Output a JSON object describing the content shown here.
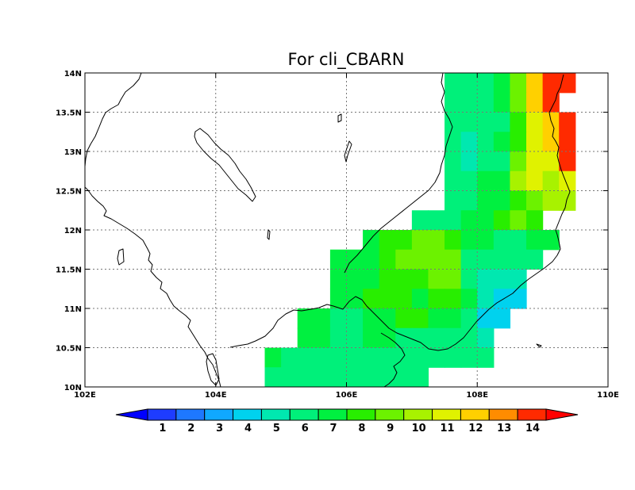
{
  "title": "For cli_CBARN",
  "map": {
    "region": "Southern Vietnam / Cambodia",
    "lon_range": [
      102,
      110
    ],
    "lat_range": [
      10,
      14
    ],
    "grid_lines": "dotted",
    "x_ticks": [
      {
        "value": 102,
        "label": "102E"
      },
      {
        "value": 104,
        "label": "104E"
      },
      {
        "value": 106,
        "label": "106E"
      },
      {
        "value": 108,
        "label": "108E"
      },
      {
        "value": 110,
        "label": "110E"
      }
    ],
    "y_ticks": [
      {
        "value": 10,
        "label": "10N"
      },
      {
        "value": 10.5,
        "label": "10.5N"
      },
      {
        "value": 11,
        "label": "11N"
      },
      {
        "value": 11.5,
        "label": "11.5N"
      },
      {
        "value": 12,
        "label": "12N"
      },
      {
        "value": 12.5,
        "label": "12.5N"
      },
      {
        "value": 13,
        "label": "13N"
      },
      {
        "value": 13.5,
        "label": "13.5N"
      },
      {
        "value": 14,
        "label": "14N"
      }
    ]
  },
  "colorbar": {
    "labels": [
      "1",
      "2",
      "3",
      "4",
      "5",
      "6",
      "7",
      "8",
      "9",
      "10",
      "11",
      "12",
      "13",
      "14"
    ],
    "colors": [
      "#1e3cff",
      "#1e78ff",
      "#10a8ff",
      "#00d2ee",
      "#00e8b0",
      "#00f07a",
      "#00f040",
      "#28ee00",
      "#6cf200",
      "#a8f200",
      "#e0f200",
      "#ffd000",
      "#ff8c00",
      "#ff2a00"
    ],
    "under_color": "#0000ff",
    "over_color": "#ff0000"
  },
  "chart_data": {
    "type": "heatmap",
    "title": "For cli_CBARN",
    "x_range": [
      102,
      110
    ],
    "y_range": [
      10,
      14
    ],
    "cell_size_deg": 0.25,
    "color_levels": [
      1,
      2,
      3,
      4,
      5,
      6,
      7,
      8,
      9,
      10,
      11,
      12,
      13,
      14
    ],
    "rows": [
      {
        "lat": 13.875,
        "lon_start": 107.5,
        "levels": [
          6,
          6,
          6,
          7,
          9,
          12,
          14,
          14
        ]
      },
      {
        "lat": 13.625,
        "lon_start": 107.5,
        "levels": [
          6,
          6,
          6,
          7,
          9,
          12,
          14
        ]
      },
      {
        "lat": 13.375,
        "lon_start": 107.5,
        "levels": [
          6,
          6,
          6,
          6,
          8,
          11,
          12,
          14
        ]
      },
      {
        "lat": 13.125,
        "lon_start": 107.5,
        "levels": [
          6,
          5,
          6,
          7,
          8,
          11,
          12,
          14
        ]
      },
      {
        "lat": 12.875,
        "lon_start": 107.5,
        "levels": [
          6,
          5,
          6,
          6,
          9,
          11,
          11,
          14
        ]
      },
      {
        "lat": 12.625,
        "lon_start": 107.5,
        "levels": [
          6,
          6,
          7,
          7,
          10,
          11,
          10,
          11
        ]
      },
      {
        "lat": 12.375,
        "lon_start": 107.5,
        "levels": [
          6,
          6,
          7,
          7,
          8,
          9,
          10,
          10
        ]
      },
      {
        "lat": 12.125,
        "lon_start": 107.0,
        "levels": [
          6,
          6,
          6,
          7,
          7,
          8,
          9,
          8
        ]
      },
      {
        "lat": 11.875,
        "lon_start": 106.25,
        "levels": [
          7,
          8,
          8,
          9,
          9,
          8,
          7,
          7,
          6,
          6,
          7,
          7
        ]
      },
      {
        "lat": 11.625,
        "lon_start": 105.75,
        "levels": [
          7,
          7,
          7,
          8,
          9,
          9,
          9,
          9,
          6,
          6,
          6,
          6,
          6
        ]
      },
      {
        "lat": 11.375,
        "lon_start": 105.75,
        "levels": [
          7,
          7,
          7,
          8,
          8,
          8,
          9,
          9,
          6,
          5,
          5,
          5
        ]
      },
      {
        "lat": 11.125,
        "lon_start": 105.75,
        "levels": [
          7,
          7,
          8,
          8,
          8,
          7,
          8,
          8,
          7,
          5,
          4,
          4
        ]
      },
      {
        "lat": 10.875,
        "lon_start": 105.25,
        "levels": [
          7,
          7,
          6,
          6,
          7,
          7,
          8,
          8,
          7,
          7,
          6,
          4,
          4
        ]
      },
      {
        "lat": 10.625,
        "lon_start": 105.25,
        "levels": [
          7,
          7,
          6,
          6,
          7,
          7,
          6,
          6,
          6,
          6,
          6,
          5
        ]
      },
      {
        "lat": 10.375,
        "lon_start": 104.75,
        "levels": [
          7,
          6,
          6,
          6,
          6,
          6,
          6,
          6,
          6,
          6,
          6,
          6,
          6,
          6
        ]
      },
      {
        "lat": 10.125,
        "lon_start": 104.75,
        "levels": [
          6,
          6,
          6,
          6,
          6,
          6,
          6,
          6,
          6,
          6
        ]
      }
    ]
  }
}
